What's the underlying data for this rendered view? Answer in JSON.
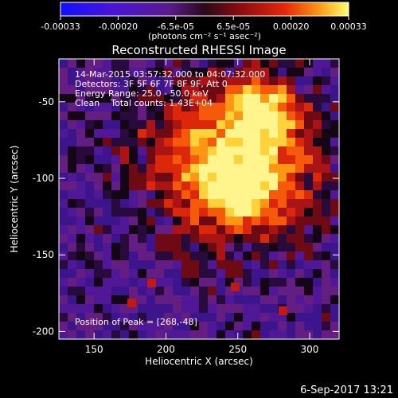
{
  "colorbar": {
    "ticks": [
      "-0.00033",
      "-0.00020",
      "-6.5e-05",
      "6.5e-05",
      "0.00020",
      "0.00033"
    ],
    "unit_label": "(photons cm⁻² s⁻¹ asec⁻²)"
  },
  "plot": {
    "title": "Reconstructed RHESSI Image",
    "xlabel": "Heliocentric X (arcsec)",
    "ylabel": "Heliocentric Y (arcsec)",
    "xticks": [
      "150",
      "200",
      "250",
      "300"
    ],
    "yticks": [
      "-50",
      "-100",
      "-150",
      "-200"
    ]
  },
  "info": {
    "time_range": "14-Mar-2015 03:57:32.000 to 04:07:32.000",
    "detectors": "Detectors: 3F 5F 6F 7F 8F 9F, Att 0",
    "energy": "Energy Range: 25.0 - 50.0 keV",
    "clean": "Clean    Total counts: 1.43E+04",
    "peak": "Position of Peak = [268,-48]"
  },
  "footer": {
    "date": "6-Sep-2017 13:21"
  }
}
